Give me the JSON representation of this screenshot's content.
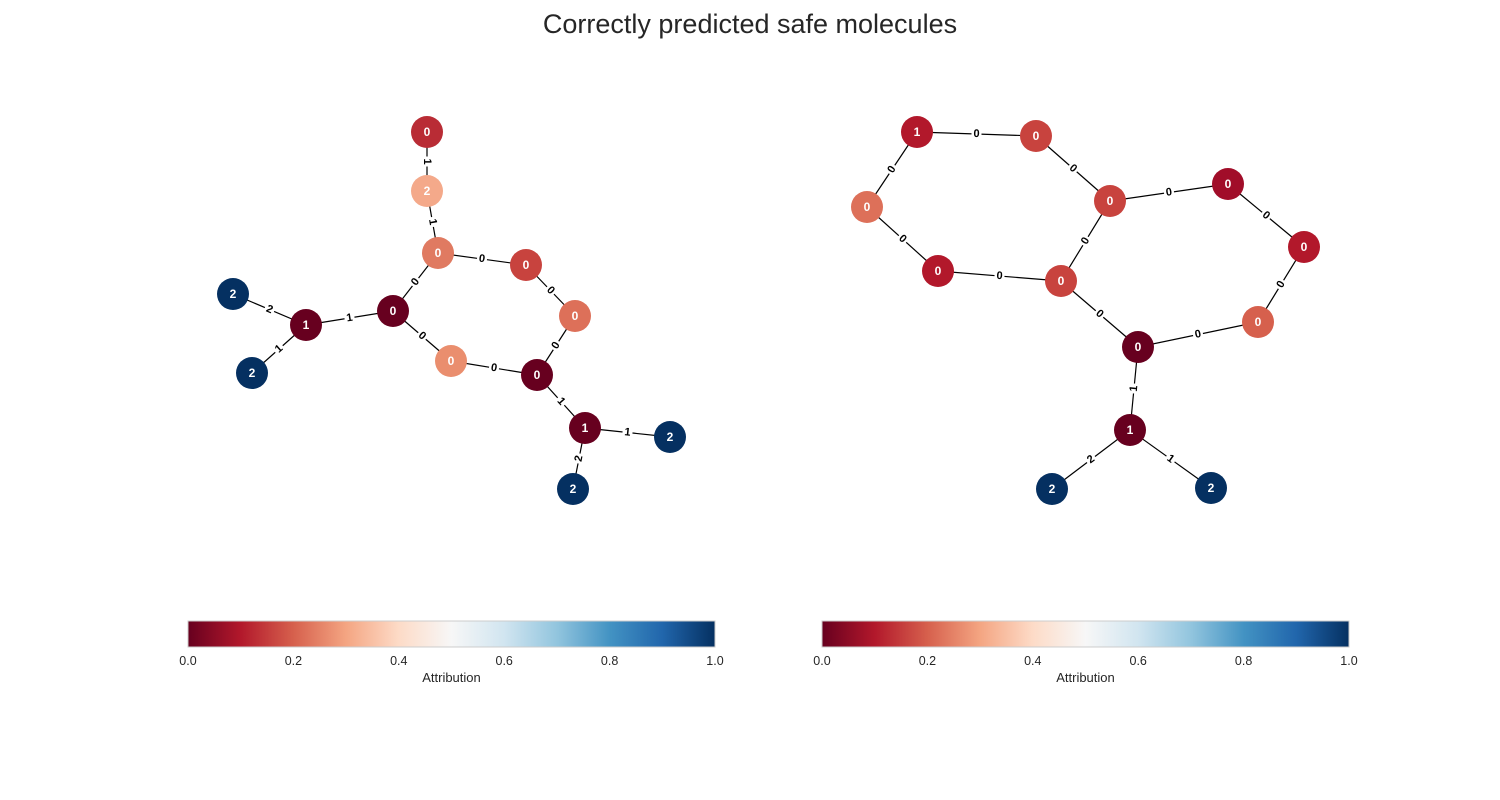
{
  "title": "Correctly predicted safe molecules",
  "colormap": {
    "name": "RdBu",
    "stops": [
      [
        0.0,
        "#67001f"
      ],
      [
        0.1,
        "#b2182b"
      ],
      [
        0.2,
        "#d6604d"
      ],
      [
        0.3,
        "#f4a582"
      ],
      [
        0.4,
        "#fddbc7"
      ],
      [
        0.5,
        "#f7f7f7"
      ],
      [
        0.6,
        "#d1e5f0"
      ],
      [
        0.7,
        "#92c5de"
      ],
      [
        0.8,
        "#4393c3"
      ],
      [
        0.9,
        "#2166ac"
      ],
      [
        1.0,
        "#053061"
      ]
    ]
  },
  "colorbar": {
    "label": "Attribution",
    "ticks": [
      "0.0",
      "0.2",
      "0.4",
      "0.6",
      "0.8",
      "1.0"
    ]
  },
  "graphs": [
    {
      "nodes": [
        {
          "id": "a0",
          "label": "0",
          "color": "#b92c35"
        },
        {
          "id": "a1",
          "label": "2",
          "color": "#f4a98a"
        },
        {
          "id": "a2",
          "label": "0",
          "color": "#e07a61"
        },
        {
          "id": "a3",
          "label": "0",
          "color": "#c8433e"
        },
        {
          "id": "a4",
          "label": "0",
          "color": "#dd7059"
        },
        {
          "id": "a5",
          "label": "0",
          "color": "#67001f"
        },
        {
          "id": "a6",
          "label": "1",
          "color": "#67001f"
        },
        {
          "id": "a7",
          "label": "2",
          "color": "#053061"
        },
        {
          "id": "a8",
          "label": "2",
          "color": "#053061"
        },
        {
          "id": "a9",
          "label": "0",
          "color": "#ea8e6e"
        },
        {
          "id": "a10",
          "label": "0",
          "color": "#67001f"
        },
        {
          "id": "a11",
          "label": "1",
          "color": "#67001f"
        },
        {
          "id": "a12",
          "label": "2",
          "color": "#053061"
        },
        {
          "id": "a13",
          "label": "2",
          "color": "#053061"
        }
      ],
      "edges": [
        {
          "source": "a0",
          "target": "a1",
          "label": "1"
        },
        {
          "source": "a1",
          "target": "a2",
          "label": "1"
        },
        {
          "source": "a2",
          "target": "a3",
          "label": "0"
        },
        {
          "source": "a3",
          "target": "a4",
          "label": "0"
        },
        {
          "source": "a2",
          "target": "a5",
          "label": "0"
        },
        {
          "source": "a5",
          "target": "a6",
          "label": "1"
        },
        {
          "source": "a6",
          "target": "a7",
          "label": "2"
        },
        {
          "source": "a6",
          "target": "a8",
          "label": "1"
        },
        {
          "source": "a5",
          "target": "a9",
          "label": "0"
        },
        {
          "source": "a9",
          "target": "a10",
          "label": "0"
        },
        {
          "source": "a4",
          "target": "a10",
          "label": "0"
        },
        {
          "source": "a10",
          "target": "a11",
          "label": "1"
        },
        {
          "source": "a11",
          "target": "a12",
          "label": "1"
        },
        {
          "source": "a11",
          "target": "a13",
          "label": "2"
        }
      ]
    },
    {
      "nodes": [
        {
          "id": "b0",
          "label": "1",
          "color": "#b2182b"
        },
        {
          "id": "b1",
          "label": "0",
          "color": "#c8433e"
        },
        {
          "id": "b2",
          "label": "0",
          "color": "#dd7059"
        },
        {
          "id": "b3",
          "label": "0",
          "color": "#b2182b"
        },
        {
          "id": "b4",
          "label": "0",
          "color": "#c8433e"
        },
        {
          "id": "b5",
          "label": "0",
          "color": "#c8433e"
        },
        {
          "id": "b6",
          "label": "0",
          "color": "#a10d29"
        },
        {
          "id": "b7",
          "label": "0",
          "color": "#b2182b"
        },
        {
          "id": "b8",
          "label": "0",
          "color": "#d6604d"
        },
        {
          "id": "b9",
          "label": "0",
          "color": "#67001f"
        },
        {
          "id": "b10",
          "label": "1",
          "color": "#67001f"
        },
        {
          "id": "b11",
          "label": "2",
          "color": "#053061"
        },
        {
          "id": "b12",
          "label": "2",
          "color": "#053061"
        }
      ],
      "edges": [
        {
          "source": "b0",
          "target": "b1",
          "label": "0"
        },
        {
          "source": "b0",
          "target": "b2",
          "label": "0"
        },
        {
          "source": "b1",
          "target": "b5",
          "label": "0"
        },
        {
          "source": "b2",
          "target": "b3",
          "label": "0"
        },
        {
          "source": "b3",
          "target": "b4",
          "label": "0"
        },
        {
          "source": "b4",
          "target": "b5",
          "label": "0"
        },
        {
          "source": "b5",
          "target": "b6",
          "label": "0"
        },
        {
          "source": "b6",
          "target": "b7",
          "label": "0"
        },
        {
          "source": "b7",
          "target": "b8",
          "label": "0"
        },
        {
          "source": "b4",
          "target": "b9",
          "label": "0"
        },
        {
          "source": "b8",
          "target": "b9",
          "label": "0"
        },
        {
          "source": "b9",
          "target": "b10",
          "label": "1"
        },
        {
          "source": "b10",
          "target": "b11",
          "label": "2"
        },
        {
          "source": "b10",
          "target": "b12",
          "label": "1"
        }
      ]
    }
  ]
}
